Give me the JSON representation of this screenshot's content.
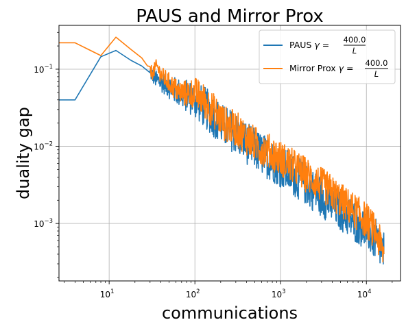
{
  "chart_data": {
    "type": "line",
    "title": "PAUS and Mirror Prox",
    "xlabel": "communications",
    "ylabel": "duality gap",
    "xscale": "log",
    "yscale": "log",
    "xlim": [
      2.6,
      25000
    ],
    "ylim": [
      0.00018,
      0.37
    ],
    "grid": true,
    "legend_position": "top-right",
    "x_ticks": [
      {
        "base": "10",
        "exp": "1",
        "value": 10
      },
      {
        "base": "10",
        "exp": "2",
        "value": 100
      },
      {
        "base": "10",
        "exp": "3",
        "value": 1000
      },
      {
        "base": "10",
        "exp": "4",
        "value": 10000
      }
    ],
    "y_ticks": [
      {
        "base": "10",
        "exp": "−3",
        "value": 0.001
      },
      {
        "base": "10",
        "exp": "−2",
        "value": 0.01
      },
      {
        "base": "10",
        "exp": "−1",
        "value": 0.1
      }
    ],
    "legend": [
      {
        "prefix": "PAUS ",
        "gamma": "γ",
        "eq": " = ",
        "num": "400.0",
        "den": "L"
      },
      {
        "prefix": "Mirror Prox ",
        "gamma": "γ",
        "eq": " = ",
        "num": "400.0",
        "den": "L"
      }
    ],
    "series": [
      {
        "name": "PAUS γ = 400.0/L",
        "color": "#1f77b4",
        "noise": 0.5,
        "x": [
          2.6,
          4,
          8,
          12,
          18,
          24,
          30,
          36,
          45,
          55,
          65,
          80,
          100,
          130,
          170,
          220,
          300,
          400,
          550,
          750,
          1000,
          1300,
          1800,
          2500,
          3500,
          5000,
          7000,
          10000,
          13000,
          16000
        ],
        "y": [
          0.04,
          0.04,
          0.145,
          0.175,
          0.13,
          0.11,
          0.09,
          0.072,
          0.065,
          0.055,
          0.05,
          0.045,
          0.04,
          0.032,
          0.024,
          0.018,
          0.015,
          0.011,
          0.0085,
          0.0068,
          0.0055,
          0.0045,
          0.0035,
          0.0026,
          0.002,
          0.0015,
          0.0011,
          0.00085,
          0.0006,
          0.0004
        ]
      },
      {
        "name": "Mirror Prox γ = 400.0/L",
        "color": "#ff7f0e",
        "noise": 0.42,
        "x": [
          2.6,
          4,
          8,
          12,
          18,
          24,
          28,
          32,
          36,
          40,
          45,
          55,
          65,
          80,
          100,
          130,
          170,
          220,
          300,
          400,
          550,
          750,
          1000,
          1300,
          1800,
          2500,
          3500,
          5000,
          7000,
          10000,
          13000,
          16000
        ],
        "y": [
          0.22,
          0.22,
          0.15,
          0.26,
          0.18,
          0.14,
          0.11,
          0.09,
          0.11,
          0.085,
          0.075,
          0.06,
          0.05,
          0.048,
          0.05,
          0.038,
          0.028,
          0.02,
          0.017,
          0.013,
          0.01,
          0.0085,
          0.007,
          0.0058,
          0.0046,
          0.0036,
          0.0028,
          0.002,
          0.0015,
          0.0011,
          0.00075,
          0.0004
        ]
      }
    ]
  }
}
